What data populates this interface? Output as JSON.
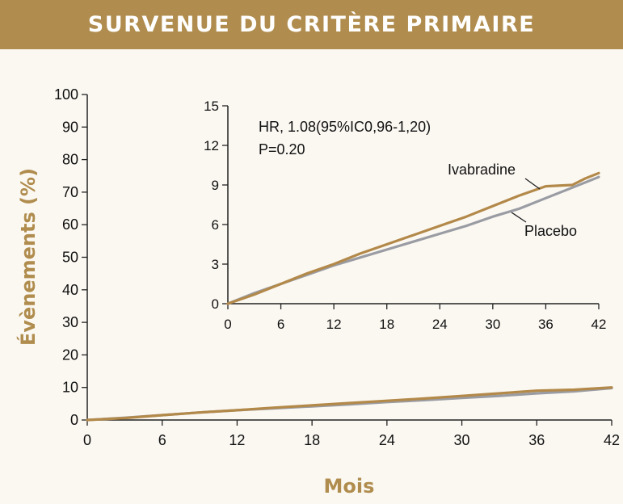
{
  "header": {
    "title": "SURVENUE DU CRITÈRE PRIMAIRE"
  },
  "colors": {
    "banner": "#b08d4e",
    "background": "#fbf8f2",
    "axis_title": "#b08d4e",
    "ivabradine": "#b3894a",
    "placebo": "#9a9ca3",
    "axis": "#222222"
  },
  "chart_data": [
    {
      "type": "line",
      "xlabel": "Mois",
      "ylabel": "Évènements (%)",
      "xlim": [
        0,
        42
      ],
      "ylim": [
        0,
        100
      ],
      "xticks": [
        0,
        6,
        12,
        18,
        24,
        30,
        36,
        42
      ],
      "yticks": [
        0,
        10,
        20,
        30,
        40,
        50,
        60,
        70,
        80,
        90,
        100
      ],
      "series": [
        {
          "name": "Placebo",
          "x": [
            0,
            3,
            6,
            9,
            12,
            15,
            18,
            21,
            24,
            27,
            30,
            33,
            36,
            39,
            42
          ],
          "y": [
            0,
            0.7,
            1.5,
            2.3,
            3.0,
            3.6,
            4.2,
            4.8,
            5.5,
            6.1,
            6.8,
            7.4,
            8.2,
            8.8,
            9.8
          ]
        },
        {
          "name": "Ivabradine",
          "x": [
            0,
            3,
            6,
            9,
            12,
            15,
            18,
            21,
            24,
            27,
            30,
            33,
            36,
            39,
            42
          ],
          "y": [
            0,
            0.6,
            1.5,
            2.3,
            3.0,
            3.8,
            4.5,
            5.2,
            5.9,
            6.6,
            7.4,
            8.2,
            9.0,
            9.3,
            10.0
          ]
        }
      ]
    },
    {
      "type": "line",
      "inset": true,
      "xlim": [
        0,
        42
      ],
      "ylim": [
        0,
        15
      ],
      "xticks": [
        0,
        6,
        12,
        18,
        24,
        30,
        36,
        42
      ],
      "yticks": [
        0,
        3,
        6,
        9,
        12,
        15
      ],
      "annotations": [
        "HR, 1.08(95%IC0,96-1,20)",
        "P=0.20"
      ],
      "series": [
        {
          "name": "Placebo",
          "x": [
            0,
            3,
            6,
            9,
            12,
            15,
            18,
            21,
            24,
            27,
            30,
            33,
            36,
            39,
            42
          ],
          "y": [
            0,
            0.8,
            1.5,
            2.2,
            2.9,
            3.5,
            4.1,
            4.7,
            5.3,
            5.9,
            6.6,
            7.2,
            8.0,
            8.8,
            9.6
          ]
        },
        {
          "name": "Ivabradine",
          "x": [
            0,
            3,
            6,
            9,
            12,
            15,
            18,
            21,
            24,
            27,
            30,
            33,
            36,
            39,
            40.5,
            42
          ],
          "y": [
            0,
            0.7,
            1.5,
            2.3,
            3.0,
            3.8,
            4.5,
            5.2,
            5.9,
            6.6,
            7.4,
            8.2,
            8.9,
            9.0,
            9.5,
            9.9
          ]
        }
      ]
    }
  ]
}
